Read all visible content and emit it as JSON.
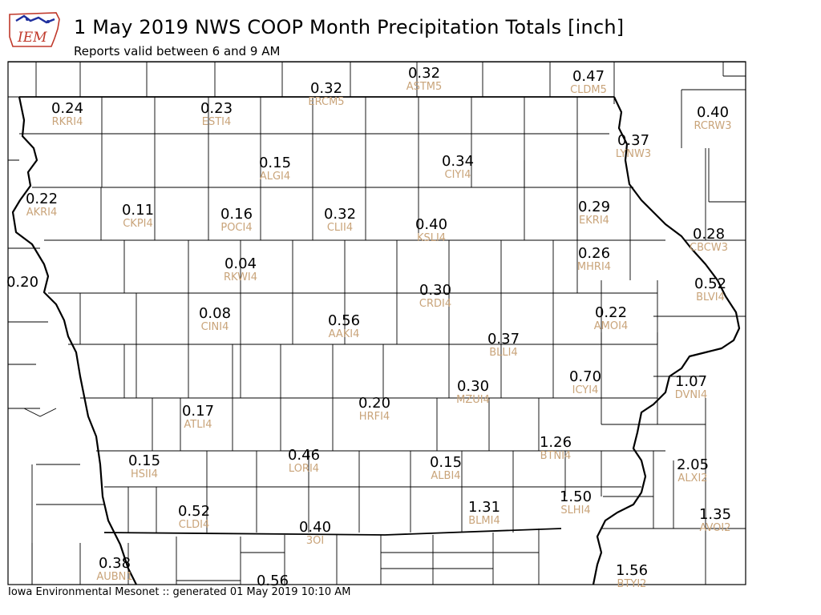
{
  "header": {
    "logo_text": "IEM",
    "title": "1 May 2019 NWS COOP Month Precipitation Totals [inch]",
    "subtitle": "Reports valid between 6 and 9 AM"
  },
  "footer": {
    "text": "Iowa Environmental Mesonet :: generated 01 May 2019 10:10 AM"
  },
  "colors": {
    "value_text": "#000000",
    "station_text": "#c9a47a",
    "logo_red": "#c0392b",
    "logo_blue": "#1f2f9e"
  },
  "stations": [
    {
      "id": "ASTM5",
      "value": "0.32"
    },
    {
      "id": "ERCM5",
      "value": "0.32"
    },
    {
      "id": "CLDM5",
      "value": "0.47"
    },
    {
      "id": "RKRI4",
      "value": "0.24"
    },
    {
      "id": "ESTI4",
      "value": "0.23"
    },
    {
      "id": "RCRW3",
      "value": "0.40"
    },
    {
      "id": "LYNW3",
      "value": "0.37"
    },
    {
      "id": "ALGI4",
      "value": "0.15"
    },
    {
      "id": "CIYI4",
      "value": "0.34"
    },
    {
      "id": "AKRI4",
      "value": "0.22"
    },
    {
      "id": "CKPI4",
      "value": "0.11"
    },
    {
      "id": "POCI4",
      "value": "0.16"
    },
    {
      "id": "CLII4",
      "value": "0.32"
    },
    {
      "id": "KSLI4",
      "value": "0.40"
    },
    {
      "id": "EKRI4",
      "value": "0.29"
    },
    {
      "id": "CBCW3",
      "value": "0.28"
    },
    {
      "id": "RKWI4",
      "value": "0.04"
    },
    {
      "id": "MHRI4",
      "value": "0.26"
    },
    {
      "id": "",
      "value": "0.20"
    },
    {
      "id": "BLVI4",
      "value": "0.52"
    },
    {
      "id": "CRDI4",
      "value": "0.30"
    },
    {
      "id": "CINI4",
      "value": "0.08"
    },
    {
      "id": "AAKI4",
      "value": "0.56"
    },
    {
      "id": "AMOI4",
      "value": "0.22"
    },
    {
      "id": "BLLI4",
      "value": "0.37"
    },
    {
      "id": "ICYI4",
      "value": "0.70"
    },
    {
      "id": "DVNI4",
      "value": "1.07"
    },
    {
      "id": "MZUI4",
      "value": "0.30"
    },
    {
      "id": "HRFI4",
      "value": "0.20"
    },
    {
      "id": "ATLI4",
      "value": "0.17"
    },
    {
      "id": "BTNI4",
      "value": "1.26"
    },
    {
      "id": "HSII4",
      "value": "0.15"
    },
    {
      "id": "LORI4",
      "value": "0.46"
    },
    {
      "id": "ALBI4",
      "value": "0.15"
    },
    {
      "id": "ALXI2",
      "value": "2.05"
    },
    {
      "id": "SLHI4",
      "value": "1.50"
    },
    {
      "id": "BLMI4",
      "value": "1.31"
    },
    {
      "id": "CLDI4",
      "value": "0.52"
    },
    {
      "id": "AVOI2",
      "value": "1.35"
    },
    {
      "id": "3OI",
      "value": "0.40"
    },
    {
      "id": "AUBN1",
      "value": "0.38"
    },
    {
      "id": "BTYI2",
      "value": "1.56"
    },
    {
      "id": "",
      "value": "0.56"
    }
  ]
}
